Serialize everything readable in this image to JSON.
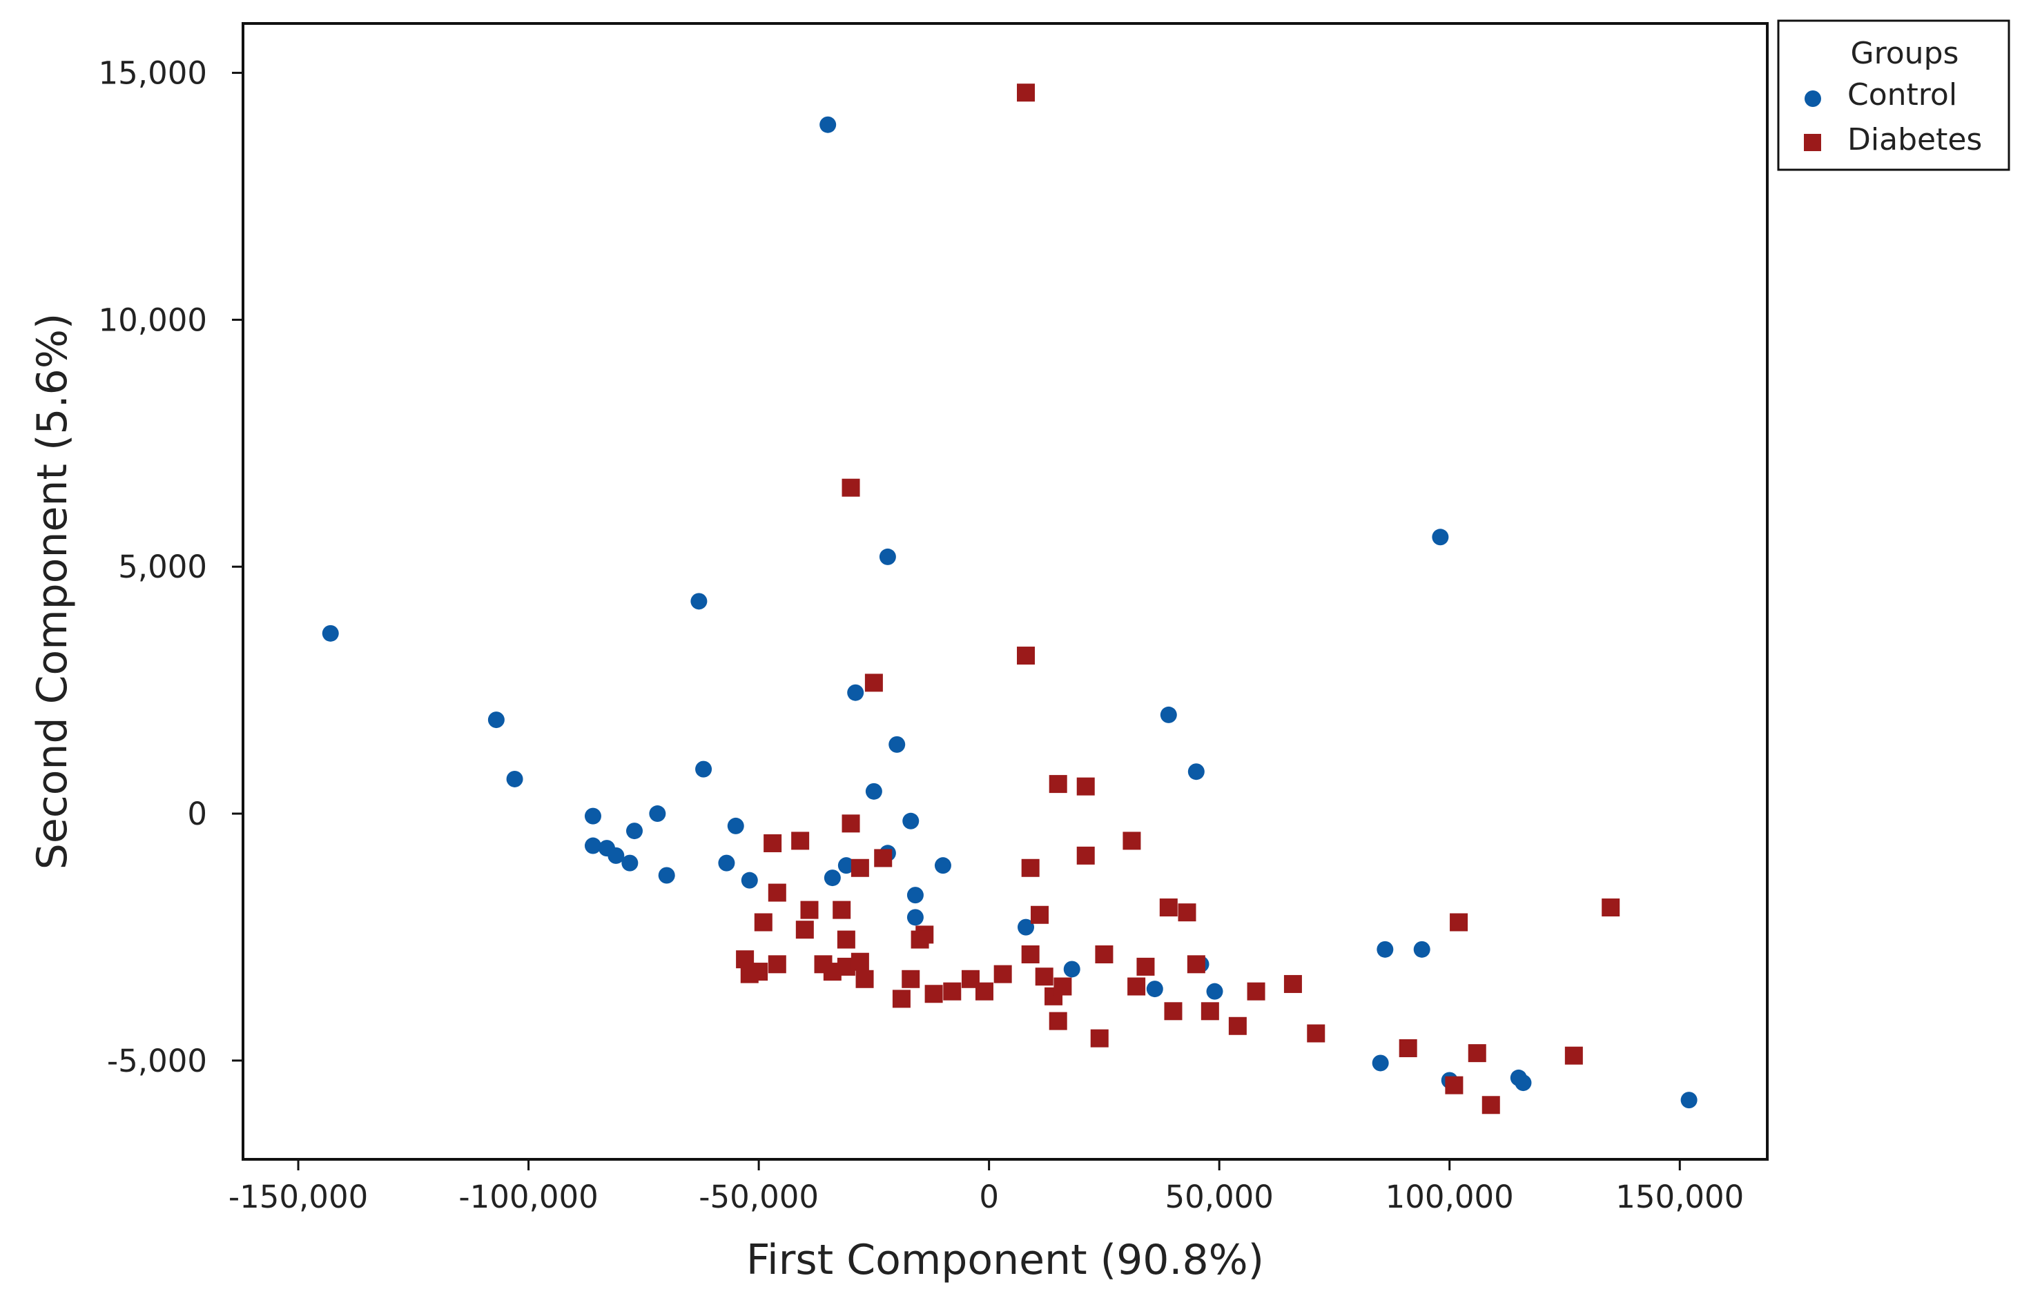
{
  "chart_data": {
    "type": "scatter",
    "title": "",
    "xlabel": "First Component (90.8%)",
    "ylabel": "Second Component (5.6%)",
    "xlim": [
      -162000,
      169000
    ],
    "ylim": [
      -7000,
      16000
    ],
    "x_ticks": [
      -150000,
      -100000,
      -50000,
      0,
      50000,
      100000,
      150000
    ],
    "x_tick_labels": [
      "-150,000",
      "-100,000",
      "-50,000",
      "0",
      "50,000",
      "100,000",
      "150,000"
    ],
    "y_ticks": [
      -5000,
      0,
      5000,
      10000,
      15000
    ],
    "y_tick_labels": [
      "-5,000",
      "0",
      "5,000",
      "10,000",
      "15,000"
    ],
    "grid": false,
    "legend": {
      "title": "Groups",
      "position": "top-right, outside plot"
    },
    "series": [
      {
        "name": "Control",
        "marker": "circle",
        "color": "#0b5aa6",
        "points": [
          [
            -143000,
            3650
          ],
          [
            -107000,
            1900
          ],
          [
            -103000,
            700
          ],
          [
            -86000,
            -50
          ],
          [
            -86000,
            -650
          ],
          [
            -83000,
            -700
          ],
          [
            -81000,
            -850
          ],
          [
            -78000,
            -1000
          ],
          [
            -77000,
            -350
          ],
          [
            -72000,
            0
          ],
          [
            -70000,
            -1250
          ],
          [
            -63000,
            4300
          ],
          [
            -62000,
            900
          ],
          [
            -57000,
            -1000
          ],
          [
            -55000,
            -250
          ],
          [
            -52000,
            -1350
          ],
          [
            -35000,
            13950
          ],
          [
            -34000,
            -1300
          ],
          [
            -31000,
            -1050
          ],
          [
            -29000,
            2450
          ],
          [
            -25000,
            450
          ],
          [
            -22000,
            5200
          ],
          [
            -22000,
            -800
          ],
          [
            -20000,
            1400
          ],
          [
            -17000,
            -150
          ],
          [
            -16000,
            -1650
          ],
          [
            -16000,
            -2100
          ],
          [
            -10000,
            -1050
          ],
          [
            8000,
            -2300
          ],
          [
            18000,
            -3150
          ],
          [
            36000,
            -3550
          ],
          [
            39000,
            2000
          ],
          [
            45000,
            850
          ],
          [
            46000,
            -3050
          ],
          [
            49000,
            -3600
          ],
          [
            85000,
            -5050
          ],
          [
            86000,
            -2750
          ],
          [
            94000,
            -2750
          ],
          [
            98000,
            5600
          ],
          [
            100000,
            -5400
          ],
          [
            115000,
            -5350
          ],
          [
            116000,
            -5450
          ],
          [
            152000,
            -5800
          ]
        ]
      },
      {
        "name": "Diabetes",
        "marker": "square",
        "color": "#9b1a1a",
        "points": [
          [
            8000,
            14600
          ],
          [
            -30000,
            6600
          ],
          [
            8000,
            3200
          ],
          [
            -25000,
            2650
          ],
          [
            15000,
            600
          ],
          [
            21000,
            550
          ],
          [
            -30000,
            -200
          ],
          [
            -47000,
            -600
          ],
          [
            -41000,
            -550
          ],
          [
            -23000,
            -900
          ],
          [
            -28000,
            -1100
          ],
          [
            9000,
            -1100
          ],
          [
            21000,
            -850
          ],
          [
            31000,
            -550
          ],
          [
            -46000,
            -1600
          ],
          [
            -39000,
            -1950
          ],
          [
            -32000,
            -1950
          ],
          [
            -49000,
            -2200
          ],
          [
            -40000,
            -2350
          ],
          [
            -31000,
            -2550
          ],
          [
            -14000,
            -2450
          ],
          [
            -15000,
            -2550
          ],
          [
            11000,
            -2050
          ],
          [
            39000,
            -1900
          ],
          [
            43000,
            -2000
          ],
          [
            102000,
            -2200
          ],
          [
            135000,
            -1900
          ],
          [
            -53000,
            -2950
          ],
          [
            -52000,
            -3250
          ],
          [
            -50000,
            -3200
          ],
          [
            -46000,
            -3050
          ],
          [
            -36000,
            -3050
          ],
          [
            -34000,
            -3200
          ],
          [
            -31000,
            -3100
          ],
          [
            -28000,
            -3000
          ],
          [
            -27000,
            -3350
          ],
          [
            -19000,
            -3750
          ],
          [
            -17000,
            -3350
          ],
          [
            -12000,
            -3650
          ],
          [
            -8000,
            -3600
          ],
          [
            -4000,
            -3350
          ],
          [
            -1000,
            -3600
          ],
          [
            3000,
            -3250
          ],
          [
            9000,
            -2850
          ],
          [
            12000,
            -3300
          ],
          [
            14000,
            -3700
          ],
          [
            15000,
            -4200
          ],
          [
            16000,
            -3500
          ],
          [
            24000,
            -4550
          ],
          [
            25000,
            -2850
          ],
          [
            32000,
            -3500
          ],
          [
            34000,
            -3100
          ],
          [
            40000,
            -4000
          ],
          [
            45000,
            -3050
          ],
          [
            48000,
            -4000
          ],
          [
            54000,
            -4300
          ],
          [
            58000,
            -3600
          ],
          [
            66000,
            -3450
          ],
          [
            71000,
            -4450
          ],
          [
            91000,
            -4750
          ],
          [
            101000,
            -5500
          ],
          [
            106000,
            -4850
          ],
          [
            109000,
            -5900
          ],
          [
            127000,
            -4900
          ]
        ]
      }
    ]
  }
}
